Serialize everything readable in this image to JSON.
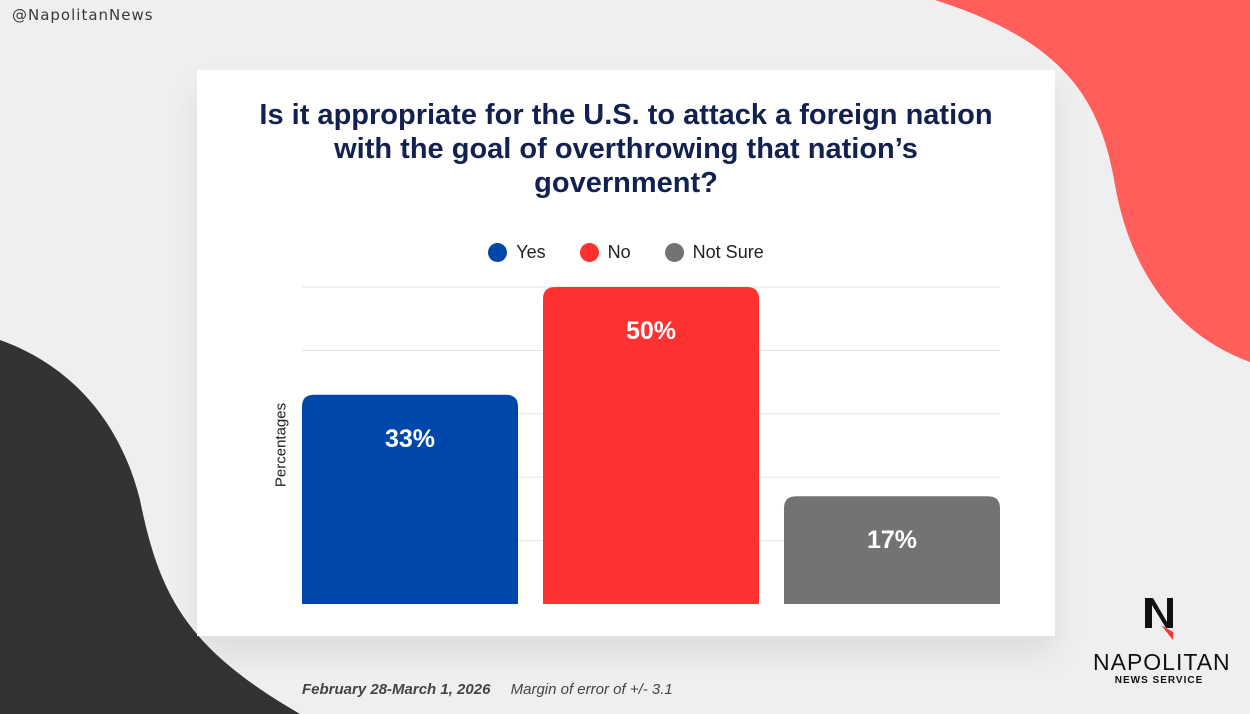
{
  "handle": "@NapolitanNews",
  "colors": {
    "yes": "#0047ab",
    "no": "#ff3131",
    "not_sure": "#737373",
    "title": "#12214f"
  },
  "chart_data": {
    "type": "bar",
    "title": "Is it appropriate for the U.S. to attack a foreign nation with the goal of overthrowing that nation’s government?",
    "ylabel": "Percentages",
    "xlabel": "",
    "categories": [
      "Yes",
      "No",
      "Not Sure"
    ],
    "values": [
      33,
      50,
      17
    ],
    "value_labels": [
      "33%",
      "50%",
      "17%"
    ],
    "ylim": [
      0,
      50
    ],
    "grid": true,
    "legend": "top-center"
  },
  "footer": {
    "date": "February 28-March 1, 2026",
    "margin": "Margin of error of +/- 3.1"
  },
  "logo": {
    "name": "NAPOLITAN",
    "sub": "NEWS SERVICE"
  }
}
